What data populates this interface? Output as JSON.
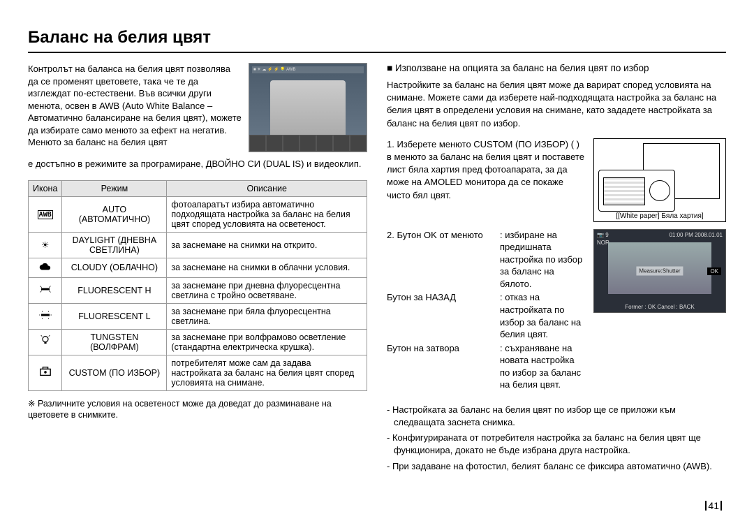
{
  "title": "Баланс на белия цвят",
  "intro_left": "Контролът на баланса на белия цвят позволява да се променят цветовете, така че те да изглеждат по-естествени. Във всички други менюта, освен в AWB (Auto White Balance – Автоматично балансиране на белия цвят), можете да избирате само менюто за ефект на негатив. Менюто за баланс на белия цвят",
  "intro_cont": "е достъпно в режимите за програмиране, ДВОЙНО СИ (DUAL IS) и видеоклип.",
  "table": {
    "headers": [
      "Икона",
      "Режим",
      "Описание"
    ],
    "rows": [
      {
        "icon": "awb",
        "mode": "AUTO (АВТОМАТИЧНО)",
        "desc": "фотоапаратът избира автоматично подходящата настройка за баланс на белия цвят според условията на осветеност."
      },
      {
        "icon": "sun",
        "mode": "DAYLIGHT (ДНЕВНА СВЕТЛИНА)",
        "desc": "за заснемане на снимки на открито."
      },
      {
        "icon": "cloud",
        "mode": "CLOUDY (ОБЛАЧНО)",
        "desc": "за заснемане на снимки в облачни условия."
      },
      {
        "icon": "fh",
        "mode": "FLUORESCENT H",
        "desc": "за заснемане при дневна флуоресцентна светлина с тройно осветяване."
      },
      {
        "icon": "fl",
        "mode": "FLUORESCENT L",
        "desc": "за заснемане при бяла флуоресцентна светлина."
      },
      {
        "icon": "bulb",
        "mode": "TUNGSTEN (ВОЛФРАМ)",
        "desc": "за заснемане при волфрамово осветление (стандартна електрическа крушка)."
      },
      {
        "icon": "cust",
        "mode": "CUSTOM (ПО ИЗБОР)",
        "desc": "потребителят може сам да задава настройката за баланс на белия цвят според условията на снимане."
      }
    ]
  },
  "footnote": "Различните условия на осветеност може да доведат до разминаване на цветовете в снимките.",
  "right": {
    "subhead": "Използване на опцията за баланс на белия цвят по избор",
    "para": "Настройките за баланс на белия цвят може да варират според условията на снимане. Можете сами да изберете най-подходящата настройка за баланс на белия цвят в определени условия на снимане, като зададете настройката за баланс на белия цвят по избор.",
    "step1": "1. Изберете менюто CUSTOM (ПО ИЗБОР) (        ) в менюто за баланс на белия цвят и поставете лист бяла хартия пред фотоапарата, за да може на AMOLED монитора да се покаже чисто бял цвят.",
    "caption1": "[[White paper] Бяла хартия]",
    "step2_head": "2. Бутон OK от менюто",
    "screen": {
      "top_left": "9",
      "top_right": "01:00 PM 2008.01.01",
      "nor": "NOR",
      "measure": "Measure:Shutter",
      "ok": "OK",
      "bottom": "Former : OK Cancel : BACK"
    },
    "buttons": [
      {
        "l": "",
        "r": ": избиране на предишната настройка по избор за баланс на бялото."
      },
      {
        "l": "Бутон за НАЗАД",
        "r": ": отказ на настройката по избор за баланс на белия цвят."
      },
      {
        "l": "Бутон на затвора",
        "r": ": съхраняване на новата настройка по избор за баланс на белия цвят."
      }
    ],
    "bullets": [
      "- Настройката за баланс на белия цвят по избор ще се приложи към следващата заснета снимка.",
      "- Конфигурираната от потребителя настройка за баланс на белия цвят ще функционира, докато не бъде избрана друга настройка.",
      "- При задаване на фотостил, белият баланс се фиксира автоматично (AWB)."
    ]
  },
  "page_number": "41"
}
